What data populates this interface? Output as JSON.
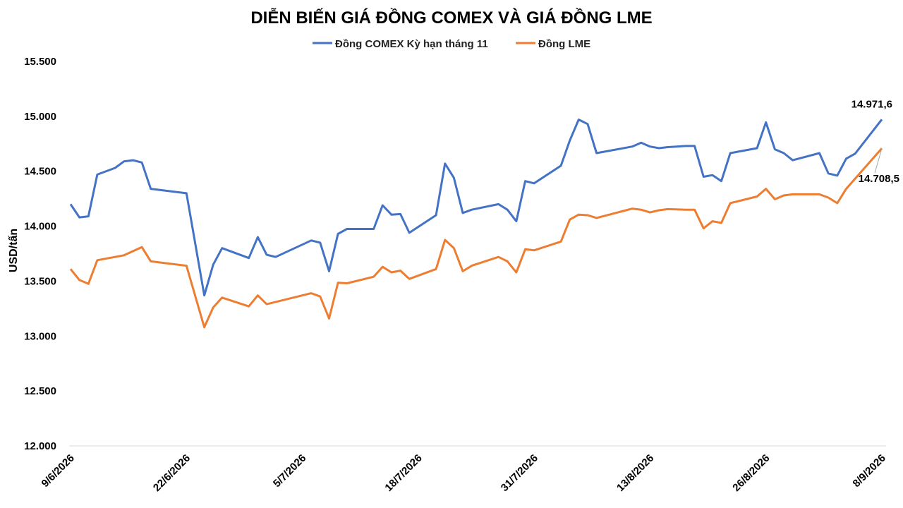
{
  "chart_data": {
    "type": "line",
    "title": "DIỄN BIẾN GIÁ ĐỒNG COMEX VÀ GIÁ ĐỒNG LME",
    "ylabel": "USD/tấn",
    "xlabel": "",
    "ylim": [
      12000,
      15500
    ],
    "yticks": [
      15500,
      15000,
      14500,
      14000,
      13500,
      13000,
      12500,
      12000
    ],
    "ytick_labels": [
      "15.500",
      "15.000",
      "14.500",
      "14.000",
      "13.500",
      "13.000",
      "12.500",
      "12.000"
    ],
    "x_tick_labels": [
      {
        "index": 0,
        "label": "9/6/2026"
      },
      {
        "index": 13,
        "label": "22/6/2026"
      },
      {
        "index": 26,
        "label": "5/7/2026"
      },
      {
        "index": 39,
        "label": "18/7/2026"
      },
      {
        "index": 52,
        "label": "31/7/2026"
      },
      {
        "index": 65,
        "label": "13/8/2026"
      },
      {
        "index": 78,
        "label": "26/8/2026"
      },
      {
        "index": 91,
        "label": "8/9/2026"
      }
    ],
    "n_points": 92,
    "grid": false,
    "legend": "top-center",
    "series": [
      {
        "name": "Đồng COMEX Kỳ hạn tháng 11",
        "color": "#4472c4",
        "values": [
          14200,
          14080,
          14090,
          14470,
          14530,
          14590,
          14600,
          14580,
          14340,
          14300,
          13370,
          13650,
          13800,
          13710,
          13900,
          13740,
          13720,
          13870,
          13850,
          13590,
          13930,
          13975,
          13975,
          13975,
          14190,
          14105,
          14110,
          13940,
          14100,
          14570,
          14440,
          14120,
          14150,
          14200,
          14150,
          14045,
          14410,
          14390,
          14550,
          14780,
          14970,
          14930,
          14665,
          14725,
          14760,
          14725,
          14710,
          14720,
          14725,
          14730,
          14730,
          14450,
          14465,
          14410,
          14665,
          14710,
          14945,
          14700,
          14665,
          14600,
          14665,
          14480,
          14460,
          14615,
          14660,
          14971.6
        ],
        "x_index": [
          0,
          1,
          2,
          3,
          5,
          6,
          7,
          8,
          9,
          13,
          15,
          16,
          17,
          20,
          21,
          22,
          23,
          27,
          28,
          29,
          30,
          31,
          32,
          34,
          35,
          36,
          37,
          38,
          41,
          42,
          43,
          44,
          45,
          48,
          49,
          50,
          51,
          52,
          55,
          56,
          57,
          58,
          59,
          63,
          64,
          65,
          66,
          67,
          68,
          69,
          70,
          71,
          72,
          73,
          74,
          77,
          78,
          79,
          80,
          81,
          84,
          85,
          86,
          87,
          88,
          91
        ]
      },
      {
        "name": "Đồng LME",
        "color": "#ed7d31",
        "values": [
          13610,
          13510,
          13475,
          13690,
          13735,
          13810,
          13680,
          13640,
          13080,
          13260,
          13350,
          13270,
          13370,
          13290,
          13390,
          13360,
          13160,
          13485,
          13480,
          13540,
          13630,
          13580,
          13595,
          13520,
          13610,
          13875,
          13800,
          13590,
          13640,
          13720,
          13680,
          13580,
          13790,
          13780,
          13860,
          14060,
          14105,
          14100,
          14075,
          14160,
          14150,
          14125,
          14145,
          14155,
          14150,
          14150,
          13980,
          14045,
          14030,
          14210,
          14270,
          14340,
          14245,
          14280,
          14290,
          14290,
          14260,
          14210,
          14340,
          14708.5
        ],
        "x_index": [
          0,
          1,
          2,
          3,
          6,
          8,
          9,
          13,
          15,
          16,
          17,
          20,
          21,
          22,
          27,
          28,
          29,
          30,
          31,
          34,
          35,
          36,
          37,
          38,
          41,
          42,
          43,
          44,
          45,
          48,
          49,
          50,
          51,
          52,
          55,
          56,
          57,
          58,
          59,
          63,
          64,
          65,
          66,
          67,
          69,
          70,
          71,
          72,
          73,
          74,
          77,
          78,
          79,
          80,
          81,
          84,
          85,
          86,
          87,
          91
        ]
      }
    ],
    "annotations": [
      {
        "series": 0,
        "text": "14.971,6"
      },
      {
        "series": 1,
        "text": "14.708,5"
      }
    ]
  }
}
